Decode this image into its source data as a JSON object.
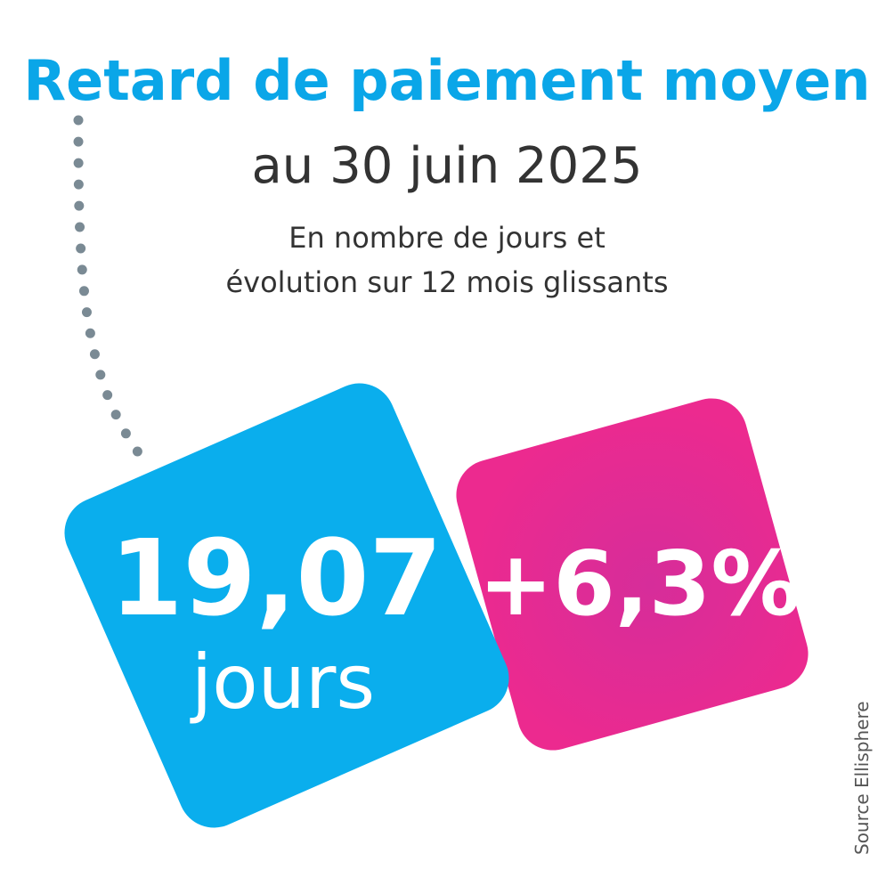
{
  "header": {
    "title": "Retard de paiement moyen",
    "subtitle": "au 30 juin 2025",
    "description": [
      "En nombre de jours et",
      "évolution sur 12 mois glissants"
    ]
  },
  "blue_card": {
    "value": "19,07",
    "unit": "jours"
  },
  "pink_card": {
    "value": "+6,3%"
  },
  "source": "Source Ellisphere"
}
